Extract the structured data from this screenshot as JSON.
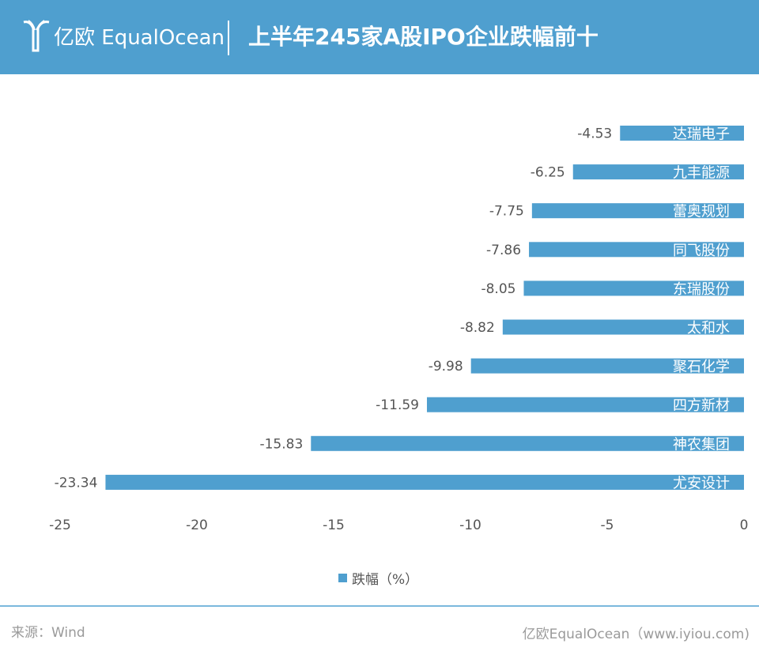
{
  "header": {
    "logo_text": "亿欧 EqualOcean",
    "title": "上半年245家A股IPO企业跌幅前十"
  },
  "colors": {
    "header_bg": "#4f9fcf",
    "bar": "#4f9fcf",
    "text": "#555555"
  },
  "chart_data": {
    "type": "bar",
    "orientation": "horizontal",
    "title": "上半年245家A股IPO企业跌幅前十",
    "categories": [
      "达瑞电子",
      "九丰能源",
      "蕾奥规划",
      "同飞股份",
      "东瑞股份",
      "太和水",
      "聚石化学",
      "四方新材",
      "神农集团",
      "尤安设计"
    ],
    "series": [
      {
        "name": "跌幅（%）",
        "values": [
          -4.53,
          -6.25,
          -7.75,
          -7.86,
          -8.05,
          -8.82,
          -9.98,
          -11.59,
          -15.83,
          -23.34
        ],
        "value_labels": [
          "-4.53",
          "-6.25",
          "-7.75",
          "-7.86",
          "-8.05",
          "-8.82",
          "-9.98",
          "-11.59",
          "-15.83",
          "-23.34"
        ]
      }
    ],
    "xlim": [
      -25,
      0
    ],
    "xticks": [
      "-25",
      "-20",
      "-15",
      "-10",
      "-5",
      "0"
    ],
    "xtick_values": [
      -25,
      -20,
      -15,
      -10,
      -5,
      0
    ],
    "grid": false,
    "legend_position": "bottom-center"
  },
  "legend": {
    "label": "跌幅（%）"
  },
  "footer": {
    "source": "来源：Wind",
    "credit": "亿欧EqualOcean（www.iyiou.com)"
  }
}
